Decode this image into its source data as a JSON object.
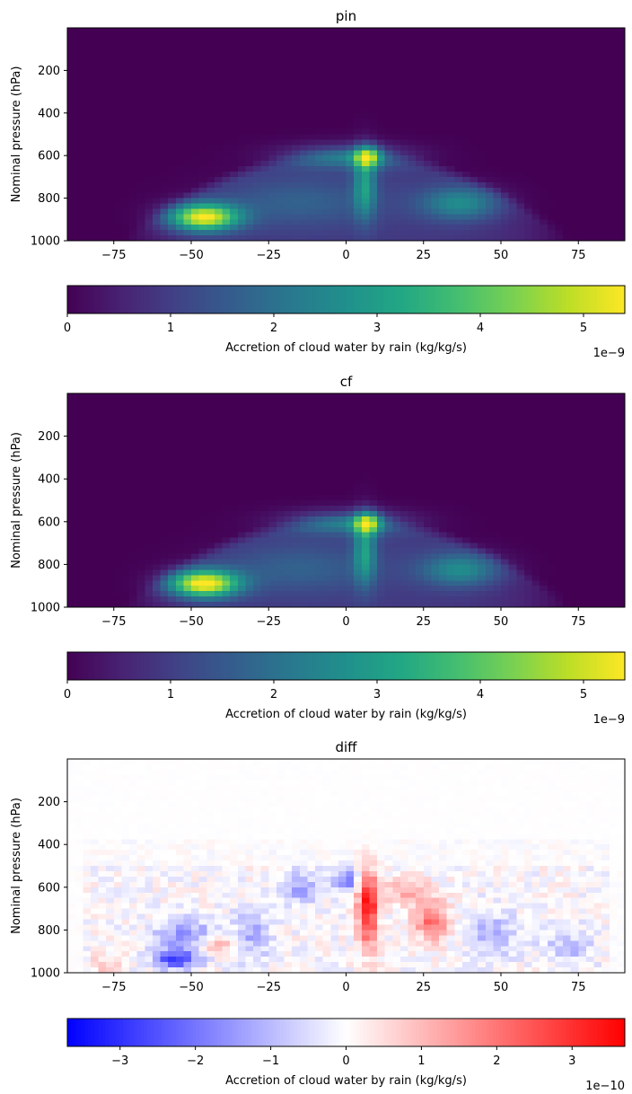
{
  "chart_data": [
    {
      "type": "heatmap",
      "title": "pin",
      "xlabel": "",
      "ylabel": "Nominal pressure (hPa)",
      "xlim": [
        -90,
        90
      ],
      "ylim": [
        1000,
        0
      ],
      "xticks": [
        -75,
        -50,
        -25,
        0,
        25,
        50,
        75
      ],
      "yticks": [
        200,
        400,
        600,
        800,
        1000
      ],
      "colormap": "viridis",
      "colorbar": {
        "label": "Accretion of cloud water by rain (kg/kg/s)",
        "range": [
          0,
          5.4
        ],
        "ticks": [
          0,
          1,
          2,
          3,
          4,
          5
        ],
        "offset_text": "1e−9"
      },
      "features": [
        {
          "lat": -46,
          "pressure": 890,
          "value": 5.3
        },
        {
          "lat": 7,
          "pressure": 605,
          "value": 3.8
        },
        {
          "lat": 6,
          "pressure": 740,
          "value": 3.0
        },
        {
          "lat": 37,
          "pressure": 820,
          "value": 2.7
        }
      ]
    },
    {
      "type": "heatmap",
      "title": "cf",
      "xlabel": "",
      "ylabel": "Nominal pressure (hPa)",
      "xlim": [
        -90,
        90
      ],
      "ylim": [
        1000,
        0
      ],
      "xticks": [
        -75,
        -50,
        -25,
        0,
        25,
        50,
        75
      ],
      "yticks": [
        200,
        400,
        600,
        800,
        1000
      ],
      "colormap": "viridis",
      "colorbar": {
        "label": "Accretion of cloud water by rain (kg/kg/s)",
        "range": [
          0,
          5.4
        ],
        "ticks": [
          0,
          1,
          2,
          3,
          4,
          5
        ],
        "offset_text": "1e−9"
      },
      "features": [
        {
          "lat": -47,
          "pressure": 885,
          "value": 5.4
        },
        {
          "lat": 6,
          "pressure": 600,
          "value": 3.4
        },
        {
          "lat": 5,
          "pressure": 740,
          "value": 2.7
        },
        {
          "lat": 37,
          "pressure": 820,
          "value": 2.6
        }
      ]
    },
    {
      "type": "heatmap",
      "title": "diff",
      "xlabel": "",
      "ylabel": "Nominal pressure (hPa)",
      "xlim": [
        -90,
        90
      ],
      "ylim": [
        1000,
        0
      ],
      "xticks": [
        -75,
        -50,
        -25,
        0,
        25,
        50,
        75
      ],
      "yticks": [
        200,
        400,
        600,
        800,
        1000
      ],
      "colormap": "bwr",
      "colorbar": {
        "label": "Accretion of cloud water by rain (kg/kg/s)",
        "range": [
          -3.7,
          3.7
        ],
        "ticks": [
          -3,
          -2,
          -1,
          0,
          1,
          2,
          3
        ],
        "offset_text": "1e−10"
      },
      "features": [
        {
          "lat": 7,
          "pressure": 700,
          "value": 3.6
        },
        {
          "lat": 28,
          "pressure": 760,
          "value": 2.2
        },
        {
          "lat": -55,
          "pressure": 940,
          "value": -2.6
        },
        {
          "lat": 0,
          "pressure": 570,
          "value": -1.8
        },
        {
          "lat": -42,
          "pressure": 870,
          "value": 1.2
        }
      ]
    }
  ]
}
